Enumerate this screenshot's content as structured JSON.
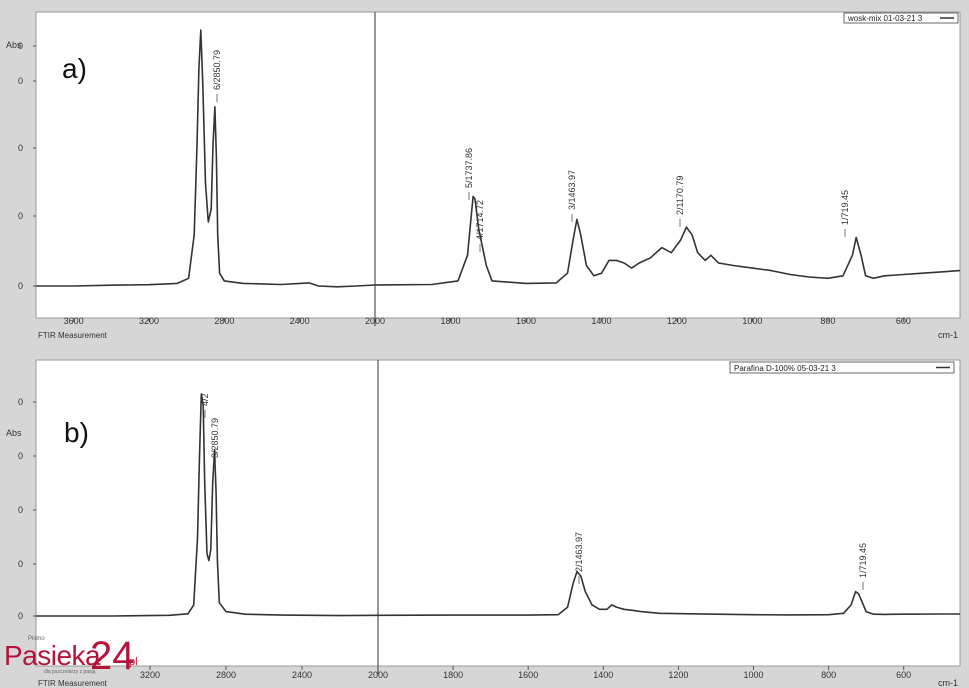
{
  "chart_data": [
    {
      "type": "line",
      "panel_label": "a)",
      "ylabel": "Abs",
      "xunit": "cm-1",
      "footer": "FTIR Measurement",
      "legend": "wosk-mix 01-03-21 3",
      "x_ticks": [
        3600,
        3200,
        2800,
        2400,
        2000,
        1800,
        1600,
        1400,
        1200,
        1000,
        800,
        600
      ],
      "y_ticks": [
        "0",
        "0",
        "0",
        "0",
        "0"
      ],
      "peak_labels": [
        "6/2850.79",
        "5/1737.86",
        "4/1714.72",
        "3/1463.97",
        "2/1170.79",
        "1/719.45"
      ],
      "series": [
        {
          "values": [
            [
              3800,
              0.0
            ],
            [
              3600,
              0.0
            ],
            [
              3400,
              0.003
            ],
            [
              3200,
              0.005
            ],
            [
              3050,
              0.01
            ],
            [
              2990,
              0.03
            ],
            [
              2960,
              0.2
            ],
            [
              2945,
              0.55
            ],
            [
              2935,
              0.85
            ],
            [
              2925,
              1.0
            ],
            [
              2915,
              0.8
            ],
            [
              2900,
              0.4
            ],
            [
              2885,
              0.25
            ],
            [
              2870,
              0.3
            ],
            [
              2860,
              0.55
            ],
            [
              2850,
              0.7
            ],
            [
              2842,
              0.5
            ],
            [
              2835,
              0.2
            ],
            [
              2825,
              0.05
            ],
            [
              2800,
              0.02
            ],
            [
              2700,
              0.01
            ],
            [
              2500,
              0.006
            ],
            [
              2350,
              0.012
            ],
            [
              2300,
              0.0
            ],
            [
              2200,
              -0.003
            ],
            [
              2100,
              0.0
            ],
            [
              2000,
              0.004
            ],
            [
              1850,
              0.006
            ],
            [
              1780,
              0.02
            ],
            [
              1755,
              0.12
            ],
            [
              1740,
              0.35
            ],
            [
              1735,
              0.34
            ],
            [
              1725,
              0.22
            ],
            [
              1715,
              0.15
            ],
            [
              1705,
              0.08
            ],
            [
              1690,
              0.02
            ],
            [
              1600,
              0.01
            ],
            [
              1520,
              0.012
            ],
            [
              1490,
              0.05
            ],
            [
              1475,
              0.18
            ],
            [
              1465,
              0.26
            ],
            [
              1455,
              0.2
            ],
            [
              1440,
              0.08
            ],
            [
              1420,
              0.04
            ],
            [
              1400,
              0.05
            ],
            [
              1380,
              0.1
            ],
            [
              1360,
              0.1
            ],
            [
              1340,
              0.09
            ],
            [
              1320,
              0.07
            ],
            [
              1300,
              0.09
            ],
            [
              1270,
              0.11
            ],
            [
              1240,
              0.15
            ],
            [
              1215,
              0.13
            ],
            [
              1190,
              0.18
            ],
            [
              1175,
              0.23
            ],
            [
              1160,
              0.2
            ],
            [
              1145,
              0.13
            ],
            [
              1125,
              0.1
            ],
            [
              1110,
              0.12
            ],
            [
              1090,
              0.09
            ],
            [
              1050,
              0.08
            ],
            [
              1000,
              0.07
            ],
            [
              950,
              0.06
            ],
            [
              900,
              0.045
            ],
            [
              850,
              0.035
            ],
            [
              800,
              0.03
            ],
            [
              760,
              0.04
            ],
            [
              735,
              0.12
            ],
            [
              725,
              0.19
            ],
            [
              712,
              0.12
            ],
            [
              700,
              0.04
            ],
            [
              680,
              0.03
            ],
            [
              650,
              0.04
            ],
            [
              600,
              0.045
            ],
            [
              550,
              0.05
            ],
            [
              500,
              0.055
            ],
            [
              450,
              0.06
            ]
          ]
        }
      ]
    },
    {
      "type": "line",
      "panel_label": "b)",
      "ylabel": "Abs",
      "xunit": "cm-1",
      "footer": "FTIR Measurement",
      "legend": "Parafina D-100% 05-03-21 3",
      "x_ticks": [
        3200,
        2800,
        2400,
        2000,
        1800,
        1600,
        1400,
        1200,
        1000,
        800,
        600
      ],
      "y_ticks": [
        "0",
        "0",
        "0",
        "0",
        "0"
      ],
      "peak_labels": [
        "4/2",
        "3/2850.79",
        "2/1463.97",
        "1/719.45"
      ],
      "series": [
        {
          "values": [
            [
              3800,
              0.0
            ],
            [
              3400,
              0.0
            ],
            [
              3100,
              0.003
            ],
            [
              3000,
              0.01
            ],
            [
              2970,
              0.05
            ],
            [
              2950,
              0.35
            ],
            [
              2940,
              0.7
            ],
            [
              2930,
              1.0
            ],
            [
              2920,
              0.95
            ],
            [
              2912,
              0.6
            ],
            [
              2900,
              0.28
            ],
            [
              2890,
              0.25
            ],
            [
              2880,
              0.3
            ],
            [
              2870,
              0.6
            ],
            [
              2860,
              0.75
            ],
            [
              2852,
              0.55
            ],
            [
              2845,
              0.25
            ],
            [
              2835,
              0.06
            ],
            [
              2800,
              0.02
            ],
            [
              2700,
              0.008
            ],
            [
              2500,
              0.004
            ],
            [
              2200,
              0.002
            ],
            [
              2000,
              0.003
            ],
            [
              1800,
              0.004
            ],
            [
              1600,
              0.004
            ],
            [
              1520,
              0.006
            ],
            [
              1495,
              0.04
            ],
            [
              1480,
              0.15
            ],
            [
              1470,
              0.2
            ],
            [
              1460,
              0.18
            ],
            [
              1448,
              0.11
            ],
            [
              1430,
              0.05
            ],
            [
              1410,
              0.03
            ],
            [
              1390,
              0.03
            ],
            [
              1378,
              0.05
            ],
            [
              1365,
              0.04
            ],
            [
              1345,
              0.03
            ],
            [
              1320,
              0.025
            ],
            [
              1300,
              0.02
            ],
            [
              1250,
              0.012
            ],
            [
              1100,
              0.008
            ],
            [
              1000,
              0.006
            ],
            [
              900,
              0.005
            ],
            [
              800,
              0.006
            ],
            [
              760,
              0.012
            ],
            [
              740,
              0.05
            ],
            [
              728,
              0.11
            ],
            [
              720,
              0.1
            ],
            [
              710,
              0.06
            ],
            [
              700,
              0.02
            ],
            [
              680,
              0.008
            ],
            [
              650,
              0.007
            ],
            [
              600,
              0.008
            ],
            [
              500,
              0.009
            ],
            [
              450,
              0.009
            ]
          ]
        }
      ]
    }
  ],
  "branding": {
    "logo_small": "Pismo",
    "logo_main": "Pasieka",
    "logo_num": "24",
    "logo_pl": ".pl",
    "logo_tag": "dla pszczelarzy z pasją"
  }
}
